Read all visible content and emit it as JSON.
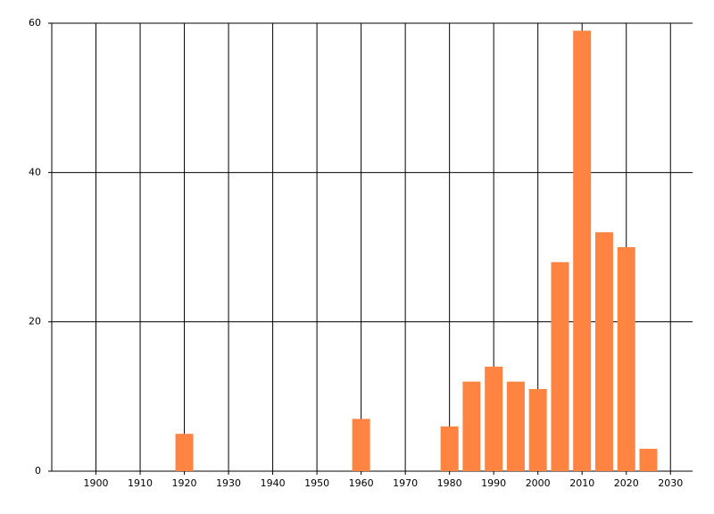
{
  "chart_data": {
    "type": "bar",
    "x": [
      1920,
      1960,
      1980,
      1985,
      1990,
      1995,
      2000,
      2005,
      2010,
      2015,
      2020,
      2025
    ],
    "values": [
      5,
      7,
      6,
      12,
      14,
      12,
      11,
      28,
      59,
      32,
      30,
      3
    ],
    "color": "#ff8442",
    "xlim": [
      1890,
      2035
    ],
    "xticks": [
      1900,
      1910,
      1920,
      1930,
      1940,
      1950,
      1960,
      1970,
      1980,
      1990,
      2000,
      2010,
      2020,
      2030
    ],
    "ylim": [
      0,
      60
    ],
    "yticks": [
      0,
      20,
      40,
      60
    ],
    "grid": true
  }
}
